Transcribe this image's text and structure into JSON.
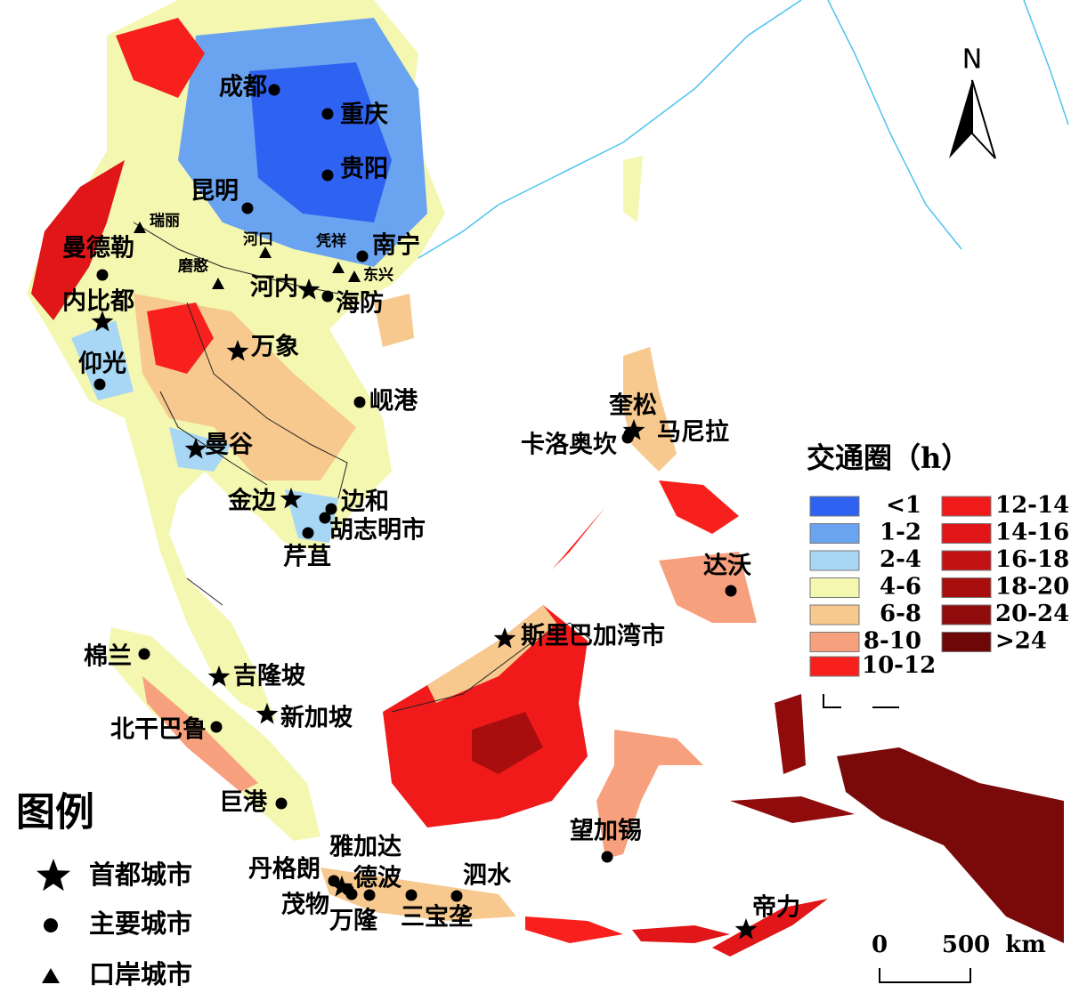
{
  "map": {
    "capitals": [
      "内比都",
      "万象",
      "河内",
      "曼谷",
      "金边",
      "斯里巴加湾市",
      "吉隆坡",
      "新加坡",
      "雅加达",
      "帝力",
      "马尼拉"
    ],
    "major_cities": [
      "成都",
      "重庆",
      "贵阳",
      "昆明",
      "曼德勒",
      "南宁",
      "海防",
      "仰光",
      "岘港",
      "奎松",
      "卡洛奥坎",
      "边和",
      "胡志明市",
      "芹苴",
      "达沃",
      "棉兰",
      "北干巴鲁",
      "巨港",
      "丹格朗",
      "德波",
      "茂物",
      "万隆",
      "三宝垄",
      "泗水",
      "望加锡"
    ],
    "port_cities": [
      "瑞丽",
      "河口",
      "磨憨",
      "凭祥",
      "东兴"
    ],
    "legend": {
      "title": "图例",
      "items": [
        "首都城市",
        "主要城市",
        "口岸城市"
      ]
    },
    "traffic_legend": {
      "title": "交通圈（h）",
      "classes": [
        {
          "label": "<1",
          "color": "#2e62f0"
        },
        {
          "label": "1-2",
          "color": "#6aa3f0"
        },
        {
          "label": "2-4",
          "color": "#a7d7f5"
        },
        {
          "label": "4-6",
          "color": "#f3f7b0"
        },
        {
          "label": "6-8",
          "color": "#f7c98e"
        },
        {
          "label": "8-10",
          "color": "#f7a07e"
        },
        {
          "label": "10-12",
          "color": "#f8201c"
        },
        {
          "label": "12-14",
          "color": "#f01a1a"
        },
        {
          "label": "14-16",
          "color": "#e01618"
        },
        {
          "label": "16-18",
          "color": "#c21214"
        },
        {
          "label": "18-20",
          "color": "#a80e0e"
        },
        {
          "label": "20-24",
          "color": "#900b0b"
        },
        {
          "label": ">24",
          "color": "#6e0808"
        }
      ]
    },
    "north": "N",
    "scale_bar": {
      "labels": [
        "0",
        "500"
      ],
      "unit": "km"
    }
  }
}
